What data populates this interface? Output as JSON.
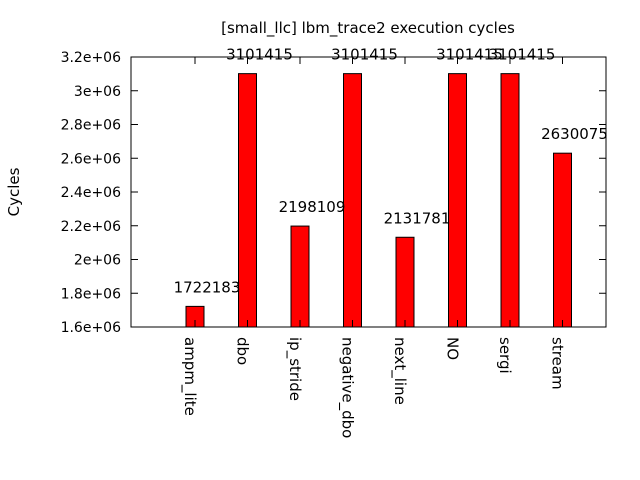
{
  "chart_data": {
    "type": "bar",
    "title": "[small_llc] lbm_trace2 execution cycles",
    "ylabel": "Cycles",
    "xlabel": "",
    "categories": [
      "ampm_lite",
      "dbo",
      "ip_stride",
      "negative_dbo",
      "next_line",
      "NO",
      "sergi",
      "stream"
    ],
    "values": [
      1722183,
      3101415,
      2198109,
      3101415,
      2131781,
      3101415,
      3101415,
      2630075
    ],
    "data_labels": [
      "1722183",
      "3101415",
      "2198109",
      "3101415",
      "2131781",
      "3101415",
      "3101415",
      "2630075"
    ],
    "ylim": [
      1600000,
      3200000
    ],
    "yticks": [
      1600000,
      1800000,
      2000000,
      2200000,
      2400000,
      2600000,
      2800000,
      3000000,
      3200000
    ],
    "ytick_labels": [
      "1.6e+06",
      "1.8e+06",
      "2e+06",
      "2.2e+06",
      "2.4e+06",
      "2.6e+06",
      "2.8e+06",
      "3e+06",
      "3.2e+06"
    ],
    "bar_color": "#ff0000",
    "grid": false,
    "legend": "none"
  }
}
